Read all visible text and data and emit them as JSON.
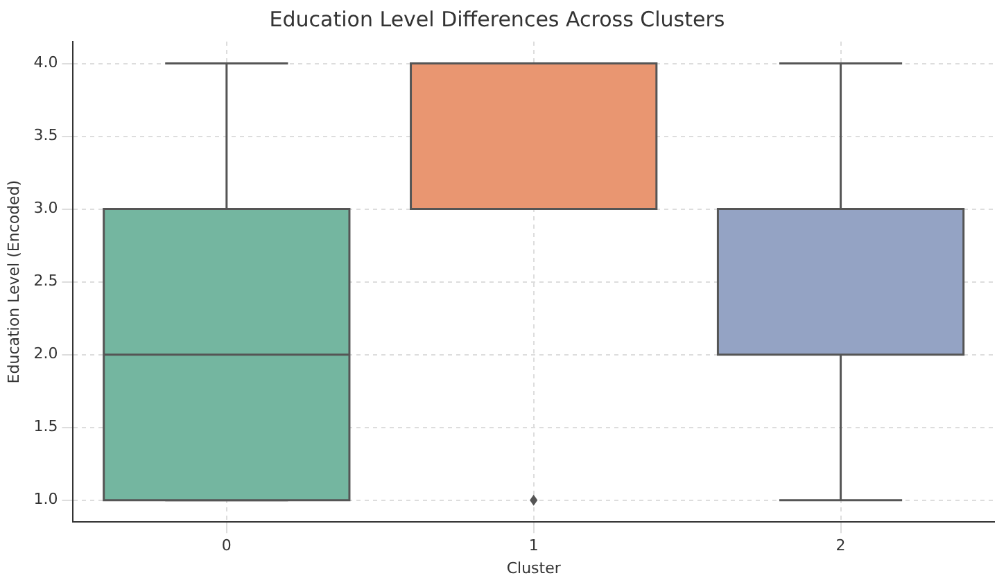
{
  "chart_data": {
    "type": "box",
    "title": "Education Level Differences Across Clusters",
    "xlabel": "Cluster",
    "ylabel": "Education Level (Encoded)",
    "categories": [
      "0",
      "1",
      "2"
    ],
    "boxes": [
      {
        "low": 1,
        "q1": 1,
        "median": 2,
        "q3": 3,
        "high": 4
      },
      {
        "low": 3,
        "q1": 3,
        "median": 3,
        "q3": 4,
        "high": 4,
        "outliers": [
          1
        ]
      },
      {
        "low": 1,
        "q1": 2,
        "median": 3,
        "q3": 3,
        "high": 4
      }
    ],
    "colors": [
      "#74b6a0",
      "#e99671",
      "#94a3c4"
    ],
    "ylim": [
      0.85,
      4.15
    ],
    "yticks": [
      {
        "value": 1,
        "label": "1.0"
      },
      {
        "value": 1.5,
        "label": "1.5"
      },
      {
        "value": 2,
        "label": "2.0"
      },
      {
        "value": 2.5,
        "label": "2.5"
      },
      {
        "value": 3,
        "label": "3.0"
      },
      {
        "value": 3.5,
        "label": "3.5"
      },
      {
        "value": 4,
        "label": "4.0"
      }
    ],
    "grid": true,
    "marker": "diamond"
  }
}
